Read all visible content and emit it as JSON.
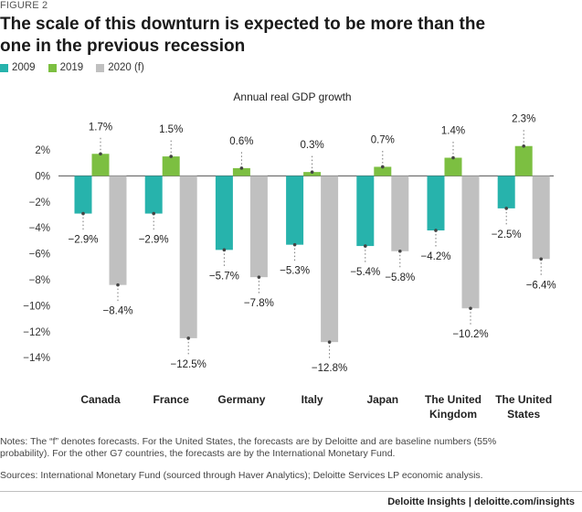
{
  "figure_label": "FIGURE 2",
  "title": "The scale of this downturn is expected to be more than the one in the previous recession",
  "notes": "Notes: The “f” denotes forecasts. For the United States, the forecasts are by Deloitte and are baseline numbers (55% probability). For the other G7 countries, the forecasts are by the International Monetary Fund.",
  "sources": "Sources: International Monetary Fund (sourced through Haver Analytics); Deloitte Services LP economic analysis.",
  "footer": "Deloitte Insights | deloitte.com/insights",
  "colors": {
    "s2009": "#27b3ac",
    "s2019": "#7cbf41",
    "s2020": "#c0c0c0"
  },
  "chart_data": {
    "type": "bar",
    "title": "Annual real GDP growth",
    "xlabel": "",
    "ylabel": "",
    "ylim": [
      -14,
      2
    ],
    "yticks": [
      2,
      0,
      -2,
      -4,
      -6,
      -8,
      -10,
      -12,
      -14
    ],
    "ytick_labels": [
      "2%",
      "0%",
      "−2%",
      "−4%",
      "−6%",
      "−8%",
      "−10%",
      "−12%",
      "−14%"
    ],
    "categories": [
      "Canada",
      "France",
      "Germany",
      "Italy",
      "Japan",
      "The United Kingdom",
      "The United States"
    ],
    "category_lines": [
      [
        "Canada"
      ],
      [
        "France"
      ],
      [
        "Germany"
      ],
      [
        "Italy"
      ],
      [
        "Japan"
      ],
      [
        "The United",
        "Kingdom"
      ],
      [
        "The United",
        "States"
      ]
    ],
    "series": [
      {
        "name": "2009",
        "values": [
          -2.9,
          -2.9,
          -5.7,
          -5.3,
          -5.4,
          -4.2,
          -2.5
        ],
        "labels": [
          "−2.9%",
          "−2.9%",
          "−5.7%",
          "−5.3%",
          "−5.4%",
          "−4.2%",
          "−2.5%"
        ]
      },
      {
        "name": "2019",
        "values": [
          1.7,
          1.5,
          0.6,
          0.3,
          0.7,
          1.4,
          2.3
        ],
        "labels": [
          "1.7%",
          "1.5%",
          "0.6%",
          "0.3%",
          "0.7%",
          "1.4%",
          "2.3%"
        ]
      },
      {
        "name": "2020 (f)",
        "values": [
          -8.4,
          -12.5,
          -7.8,
          -12.8,
          -5.8,
          -10.2,
          -6.4
        ],
        "labels": [
          "−8.4%",
          "−12.5%",
          "−7.8%",
          "−12.8%",
          "−5.8%",
          "−10.2%",
          "−6.4%"
        ]
      }
    ],
    "legend_position": "top-left"
  }
}
